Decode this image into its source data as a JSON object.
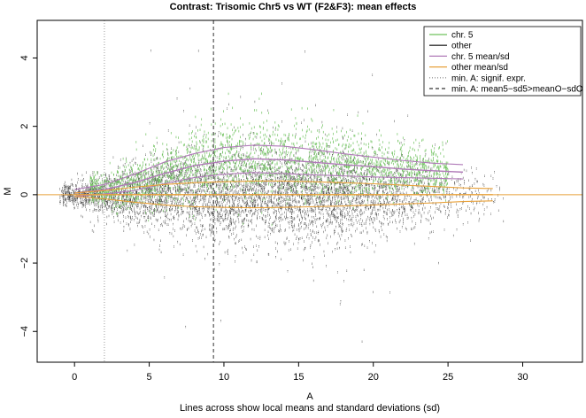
{
  "chart_data": {
    "type": "scatter",
    "title": "Contrast: Trisomic Chr5 vs WT (F2&F3): mean effects",
    "xlabel": "A",
    "subtitle": "Lines across show local means and standard deviations (sd)",
    "ylabel": "M",
    "xlim": [
      -2.5,
      34
    ],
    "ylim": [
      -4.9,
      5.1
    ],
    "x_ticks": [
      0,
      5,
      10,
      15,
      20,
      25,
      30
    ],
    "x_tick_labels": [
      "0",
      "5",
      "10",
      "15",
      "20",
      "25",
      "30"
    ],
    "y_ticks": [
      -4,
      -2,
      0,
      2,
      4
    ],
    "y_tick_labels": [
      "−4",
      "−2",
      "0",
      "2",
      "4"
    ],
    "grid": false,
    "legend_position": "top-right",
    "legend": [
      {
        "label": "chr. 5",
        "color": "#6fc25e",
        "style": "solid"
      },
      {
        "label": "other",
        "color": "#333333",
        "style": "solid"
      },
      {
        "label": "chr. 5 mean/sd",
        "color": "#b07ab8",
        "style": "solid"
      },
      {
        "label": "other mean/sd",
        "color": "#e8a13a",
        "style": "solid"
      },
      {
        "label": "min. A: signif. expr.",
        "color": "#999999",
        "style": "dotted"
      },
      {
        "label": "min. A: mean5−sd5>meanO−sdO",
        "color": "#333333",
        "style": "dashed"
      }
    ],
    "reference_lines": [
      {
        "orientation": "horizontal",
        "value": 0,
        "color": "#e8a13a"
      },
      {
        "orientation": "vertical",
        "value": 2.0,
        "label": "min. A: signif. expr.",
        "style": "dotted"
      },
      {
        "orientation": "vertical",
        "value": 9.3,
        "label": "min. A: mean5−sd5>meanO−sdO",
        "style": "dashed"
      }
    ],
    "series": [
      {
        "name": "chr. 5 mean/sd",
        "x": [
          0,
          2,
          4,
          6,
          8,
          10,
          12,
          14,
          16,
          18,
          20,
          22,
          24,
          26
        ],
        "mean": [
          0.05,
          0.15,
          0.35,
          0.62,
          0.85,
          0.98,
          1.05,
          1.02,
          0.95,
          0.88,
          0.82,
          0.75,
          0.7,
          0.66
        ],
        "upper": [
          0.15,
          0.3,
          0.6,
          0.95,
          1.2,
          1.38,
          1.45,
          1.42,
          1.32,
          1.2,
          1.1,
          1.0,
          0.92,
          0.88
        ],
        "lower": [
          -0.05,
          0.02,
          0.12,
          0.32,
          0.5,
          0.6,
          0.65,
          0.62,
          0.58,
          0.55,
          0.52,
          0.5,
          0.48,
          0.46
        ]
      },
      {
        "name": "other mean/sd",
        "x": [
          0,
          2,
          4,
          6,
          8,
          10,
          12,
          14,
          16,
          18,
          20,
          22,
          24,
          26,
          28
        ],
        "mean": [
          0.0,
          0.0,
          0.0,
          0.0,
          0.0,
          0.0,
          0.0,
          0.0,
          0.0,
          0.0,
          0.0,
          0.0,
          0.0,
          0.0,
          0.0
        ],
        "upper": [
          0.05,
          0.12,
          0.22,
          0.3,
          0.35,
          0.38,
          0.4,
          0.4,
          0.38,
          0.35,
          0.32,
          0.28,
          0.24,
          0.2,
          0.18
        ],
        "lower": [
          -0.05,
          -0.12,
          -0.22,
          -0.3,
          -0.35,
          -0.37,
          -0.38,
          -0.37,
          -0.35,
          -0.33,
          -0.3,
          -0.27,
          -0.24,
          -0.2,
          -0.18
        ]
      }
    ]
  }
}
